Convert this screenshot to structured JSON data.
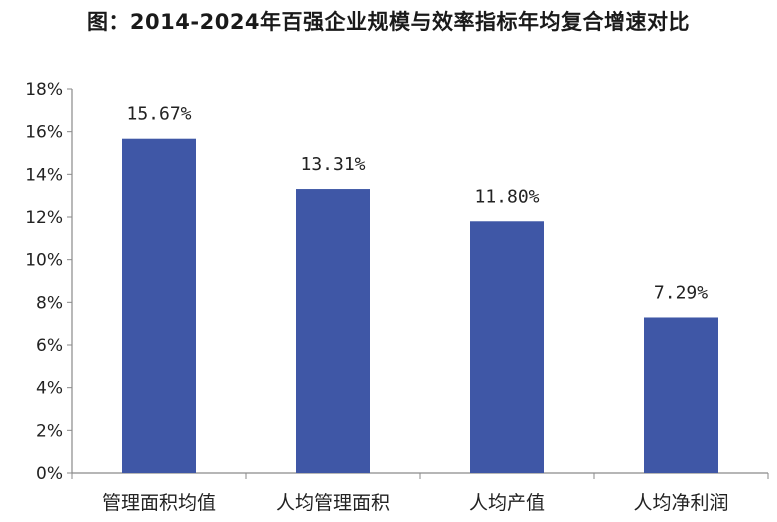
{
  "title": "图：2014-2024年百强企业规模与效率指标年均复合增速对比",
  "chart_data": {
    "type": "bar",
    "categories": [
      "管理面积均值",
      "人均管理面积",
      "人均产值",
      "人均净利润"
    ],
    "values": [
      15.67,
      13.31,
      11.8,
      7.29
    ],
    "data_labels": [
      "15.67%",
      "13.31%",
      "11.80%",
      "7.29%"
    ],
    "yticks": [
      "0%",
      "2%",
      "4%",
      "6%",
      "8%",
      "10%",
      "12%",
      "14%",
      "16%",
      "18%"
    ],
    "ylim": [
      0,
      18
    ],
    "ytick_step": 2,
    "bar_color": "#3f57a6",
    "grid": false,
    "legend": "none"
  }
}
